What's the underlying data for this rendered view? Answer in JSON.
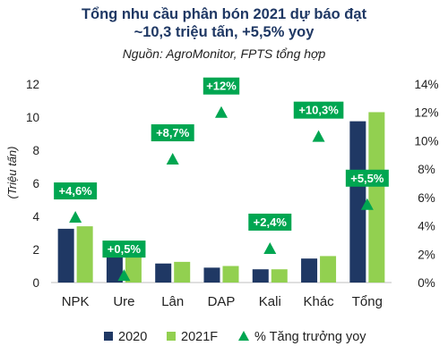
{
  "chart_data": {
    "type": "bar",
    "title_line1": "Tổng nhu cầu phân bón 2021 dự báo đạt",
    "title_line2": "~10,3 triệu tấn, +5,5% yoy",
    "subtitle": "Nguồn: AgroMonitor, FPTS tổng hợp",
    "ylabel": "(Triệu tấn)",
    "categories": [
      "NPK",
      "Ure",
      "Lân",
      "DAP",
      "Kali",
      "Khác",
      "Tổng"
    ],
    "series": [
      {
        "name": "2020",
        "type": "bar",
        "axis": "left",
        "color": "#1f3864",
        "values": [
          3.25,
          2.15,
          1.15,
          0.9,
          0.8,
          1.45,
          9.75
        ]
      },
      {
        "name": "2021F",
        "type": "bar",
        "axis": "left",
        "color": "#92d050",
        "values": [
          3.4,
          2.15,
          1.25,
          1.0,
          0.8,
          1.6,
          10.3
        ]
      },
      {
        "name": "% Tăng trưởng yoy",
        "type": "marker",
        "axis": "right",
        "color": "#00a651",
        "values": [
          4.6,
          0.5,
          8.7,
          12.0,
          2.4,
          10.3,
          5.5
        ],
        "labels": [
          "+4,6%",
          "+0,5%",
          "+8,7%",
          "+12%",
          "+2,4%",
          "+10,3%",
          "+5,5%"
        ]
      }
    ],
    "ylim": [
      0,
      12
    ],
    "yticks": [
      "0",
      "2",
      "4",
      "6",
      "8",
      "10",
      "12"
    ],
    "y2lim": [
      0,
      14
    ],
    "y2ticks": [
      "0%",
      "2%",
      "4%",
      "6%",
      "8%",
      "10%",
      "12%",
      "14%"
    ],
    "grid": false,
    "legend_position": "bottom"
  }
}
